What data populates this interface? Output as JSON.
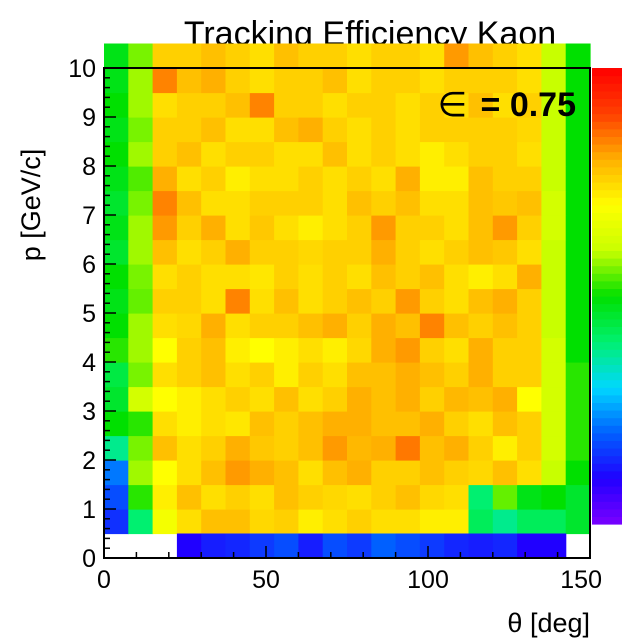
{
  "chart_data": {
    "type": "heatmap",
    "title": "Tracking Efficiency Kaon",
    "xlabel": "θ [deg]",
    "ylabel": "p [GeV/c]",
    "xlim": [
      0,
      150
    ],
    "ylim": [
      0,
      10
    ],
    "x_ticks": [
      "0",
      "50",
      "100",
      "150"
    ],
    "y_ticks": [
      "0",
      "1",
      "2",
      "3",
      "4",
      "5",
      "6",
      "7",
      "8",
      "9",
      "10"
    ],
    "x_bin_edges_start": 0,
    "x_bin_width": 6.67,
    "y_bin_edges_start": 0.5,
    "y_bin_width": 0.5,
    "annotation": {
      "symbol": "∈",
      "text": "= 0.75"
    },
    "colorbar": {
      "range": [
        0,
        1
      ],
      "palette": [
        "#7a00ff",
        "#2000ff",
        "#0060ff",
        "#00d8ff",
        "#00f070",
        "#00e000",
        "#c8ff00",
        "#ffff00",
        "#ffb000",
        "#ff4000",
        "#ff0000"
      ]
    },
    "values": [
      [
        0.15,
        0.4,
        0.68,
        0.74,
        0.78,
        0.78,
        0.75,
        0.76,
        0.72,
        0.74,
        0.76,
        0.74,
        0.74,
        0.72,
        0.72,
        0.42,
        0.38,
        0.42,
        0.42,
        0.46
      ],
      [
        0.18,
        0.52,
        0.72,
        0.78,
        0.74,
        0.76,
        0.74,
        0.78,
        0.76,
        0.75,
        0.74,
        0.76,
        0.78,
        0.75,
        0.74,
        0.4,
        0.55,
        0.48,
        0.5,
        0.46
      ],
      [
        0.22,
        0.58,
        0.7,
        0.74,
        0.78,
        0.82,
        0.8,
        0.78,
        0.74,
        0.78,
        0.8,
        0.76,
        0.76,
        0.78,
        0.76,
        0.75,
        0.78,
        0.74,
        0.6,
        0.5
      ],
      [
        0.38,
        0.56,
        0.78,
        0.74,
        0.76,
        0.8,
        0.77,
        0.76,
        0.78,
        0.82,
        0.79,
        0.8,
        0.85,
        0.78,
        0.8,
        0.76,
        0.72,
        0.76,
        0.62,
        0.52
      ],
      [
        0.5,
        0.52,
        0.74,
        0.72,
        0.74,
        0.73,
        0.78,
        0.76,
        0.78,
        0.8,
        0.8,
        0.78,
        0.78,
        0.8,
        0.76,
        0.74,
        0.78,
        0.76,
        0.62,
        0.52
      ],
      [
        0.46,
        0.62,
        0.7,
        0.72,
        0.74,
        0.76,
        0.74,
        0.78,
        0.74,
        0.76,
        0.8,
        0.78,
        0.8,
        0.76,
        0.79,
        0.78,
        0.8,
        0.7,
        0.62,
        0.52
      ],
      [
        0.44,
        0.56,
        0.74,
        0.76,
        0.78,
        0.74,
        0.76,
        0.72,
        0.76,
        0.74,
        0.78,
        0.78,
        0.8,
        0.78,
        0.76,
        0.8,
        0.76,
        0.76,
        0.62,
        0.52
      ],
      [
        0.52,
        0.58,
        0.7,
        0.76,
        0.78,
        0.72,
        0.7,
        0.72,
        0.74,
        0.72,
        0.75,
        0.8,
        0.82,
        0.76,
        0.74,
        0.8,
        0.76,
        0.76,
        0.62,
        0.5
      ],
      [
        0.5,
        0.58,
        0.74,
        0.75,
        0.8,
        0.74,
        0.76,
        0.76,
        0.78,
        0.8,
        0.76,
        0.8,
        0.78,
        0.84,
        0.78,
        0.76,
        0.78,
        0.76,
        0.6,
        0.5
      ],
      [
        0.48,
        0.55,
        0.76,
        0.76,
        0.74,
        0.84,
        0.74,
        0.78,
        0.74,
        0.76,
        0.78,
        0.76,
        0.82,
        0.76,
        0.74,
        0.78,
        0.8,
        0.76,
        0.6,
        0.5
      ],
      [
        0.5,
        0.56,
        0.74,
        0.76,
        0.74,
        0.74,
        0.73,
        0.76,
        0.74,
        0.76,
        0.74,
        0.78,
        0.76,
        0.78,
        0.74,
        0.72,
        0.74,
        0.8,
        0.6,
        0.5
      ],
      [
        0.46,
        0.58,
        0.78,
        0.74,
        0.76,
        0.8,
        0.76,
        0.76,
        0.75,
        0.76,
        0.76,
        0.8,
        0.76,
        0.74,
        0.76,
        0.78,
        0.77,
        0.74,
        0.6,
        0.5
      ],
      [
        0.48,
        0.58,
        0.82,
        0.76,
        0.8,
        0.74,
        0.77,
        0.74,
        0.72,
        0.74,
        0.76,
        0.82,
        0.76,
        0.76,
        0.74,
        0.78,
        0.82,
        0.76,
        0.62,
        0.5
      ],
      [
        0.46,
        0.56,
        0.84,
        0.78,
        0.74,
        0.74,
        0.76,
        0.76,
        0.76,
        0.74,
        0.78,
        0.76,
        0.78,
        0.74,
        0.74,
        0.78,
        0.77,
        0.78,
        0.62,
        0.5
      ],
      [
        0.48,
        0.54,
        0.8,
        0.74,
        0.76,
        0.72,
        0.74,
        0.74,
        0.76,
        0.74,
        0.76,
        0.74,
        0.8,
        0.72,
        0.72,
        0.78,
        0.76,
        0.76,
        0.6,
        0.5
      ],
      [
        0.5,
        0.58,
        0.76,
        0.78,
        0.74,
        0.76,
        0.76,
        0.74,
        0.74,
        0.78,
        0.74,
        0.76,
        0.74,
        0.72,
        0.74,
        0.76,
        0.76,
        0.74,
        0.6,
        0.5
      ],
      [
        0.48,
        0.56,
        0.76,
        0.76,
        0.78,
        0.74,
        0.74,
        0.78,
        0.8,
        0.76,
        0.74,
        0.76,
        0.74,
        0.76,
        0.76,
        0.76,
        0.76,
        0.75,
        0.6,
        0.5
      ],
      [
        0.5,
        0.58,
        0.74,
        0.76,
        0.76,
        0.78,
        0.84,
        0.76,
        0.76,
        0.74,
        0.76,
        0.76,
        0.74,
        0.76,
        0.74,
        0.78,
        0.74,
        0.76,
        0.6,
        0.5
      ],
      [
        0.48,
        0.58,
        0.84,
        0.78,
        0.8,
        0.76,
        0.74,
        0.76,
        0.76,
        0.78,
        0.74,
        0.76,
        0.76,
        0.74,
        0.76,
        0.76,
        0.76,
        0.74,
        0.6,
        0.5
      ],
      [
        0.48,
        0.56,
        0.76,
        0.76,
        0.78,
        0.76,
        0.74,
        0.78,
        0.76,
        0.76,
        0.74,
        0.76,
        0.76,
        0.74,
        0.82,
        0.78,
        0.76,
        0.74,
        0.6,
        0.5
      ]
    ],
    "bottom_row_values": [
      null,
      null,
      null,
      0.1,
      0.13,
      0.14,
      0.16,
      0.18,
      0.13,
      0.18,
      0.16,
      0.2,
      0.18,
      0.16,
      0.14,
      0.13,
      0.14,
      0.1,
      0.1,
      null
    ]
  }
}
